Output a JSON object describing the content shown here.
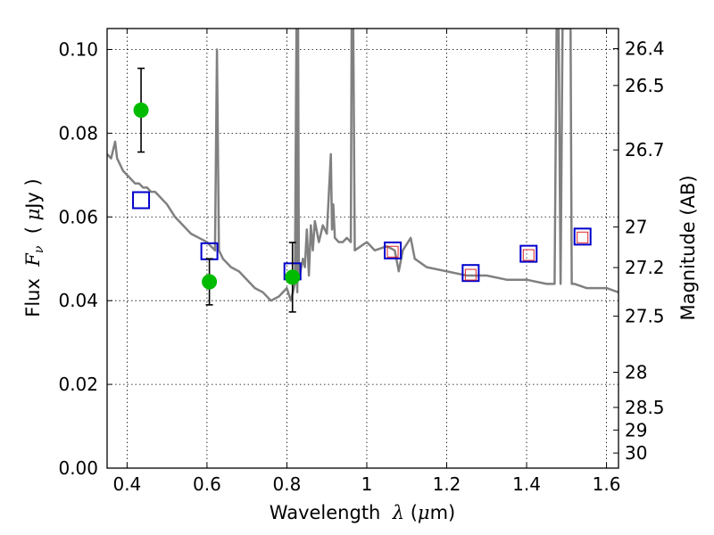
{
  "chart_data": {
    "type": "scatter",
    "title": "",
    "xlabel_parts": [
      "Wavelength  ",
      "λ",
      " (",
      "μ",
      "m)"
    ],
    "ylabel_parts": [
      "Flux  ",
      "F",
      "ν",
      "  ( ",
      "μ",
      "Jy )"
    ],
    "y2label": "Magnitude (AB)",
    "xlim": [
      0.35,
      1.63
    ],
    "ylim": [
      0.0,
      0.105
    ],
    "grid": true,
    "x_ticks": [
      {
        "value": 0.4,
        "label": "0.4"
      },
      {
        "value": 0.6,
        "label": "0.6"
      },
      {
        "value": 0.8,
        "label": "0.8"
      },
      {
        "value": 1.0,
        "label": "1"
      },
      {
        "value": 1.2,
        "label": "1.2"
      },
      {
        "value": 1.4,
        "label": "1.4"
      },
      {
        "value": 1.6,
        "label": "1.6"
      }
    ],
    "y_ticks": [
      {
        "value": 0.0,
        "label": "0.00"
      },
      {
        "value": 0.02,
        "label": "0.02"
      },
      {
        "value": 0.04,
        "label": "0.04"
      },
      {
        "value": 0.06,
        "label": "0.06"
      },
      {
        "value": 0.08,
        "label": "0.08"
      },
      {
        "value": 0.1,
        "label": "0.10"
      }
    ],
    "y2_ticks": [
      {
        "label": "26.4",
        "flux": 0.1002
      },
      {
        "label": "26.5",
        "flux": 0.0914
      },
      {
        "label": "26.7",
        "flux": 0.076
      },
      {
        "label": "27",
        "flux": 0.0576
      },
      {
        "label": "27.2",
        "flux": 0.0479
      },
      {
        "label": "27.5",
        "flux": 0.0363
      },
      {
        "label": "28",
        "flux": 0.0229
      },
      {
        "label": "28.5",
        "flux": 0.0145
      },
      {
        "label": "29",
        "flux": 0.0091
      },
      {
        "label": "30",
        "flux": 0.0036
      }
    ],
    "series": [
      {
        "kind": "model-spectrum",
        "color": "#808080",
        "x": [
          0.35,
          0.36,
          0.37,
          0.375,
          0.38,
          0.39,
          0.4,
          0.41,
          0.42,
          0.43,
          0.44,
          0.45,
          0.46,
          0.47,
          0.48,
          0.5,
          0.52,
          0.54,
          0.55,
          0.56,
          0.58,
          0.6,
          0.61,
          0.62,
          0.625,
          0.63,
          0.635,
          0.64,
          0.65,
          0.66,
          0.68,
          0.7,
          0.72,
          0.74,
          0.76,
          0.78,
          0.8,
          0.81,
          0.82,
          0.824,
          0.826,
          0.828,
          0.83,
          0.84,
          0.845,
          0.85,
          0.855,
          0.86,
          0.865,
          0.87,
          0.88,
          0.89,
          0.9,
          0.91,
          0.913,
          0.916,
          0.92,
          0.93,
          0.94,
          0.95,
          0.96,
          0.962,
          0.966,
          0.97,
          1.0,
          1.02,
          1.05,
          1.07,
          1.08,
          1.09,
          1.11,
          1.12,
          1.15,
          1.2,
          1.25,
          1.3,
          1.35,
          1.4,
          1.45,
          1.47,
          1.475,
          1.48,
          1.485,
          1.49,
          1.5,
          1.51,
          1.513,
          1.52,
          1.55,
          1.6,
          1.63
        ],
        "y": [
          0.075,
          0.074,
          0.078,
          0.074,
          0.073,
          0.071,
          0.07,
          0.069,
          0.068,
          0.068,
          0.067,
          0.067,
          0.066,
          0.066,
          0.065,
          0.063,
          0.06,
          0.058,
          0.057,
          0.056,
          0.055,
          0.054,
          0.053,
          0.052,
          0.1,
          0.052,
          0.051,
          0.05,
          0.049,
          0.048,
          0.047,
          0.045,
          0.043,
          0.042,
          0.04,
          0.041,
          0.043,
          0.04,
          0.044,
          0.105,
          0.042,
          0.105,
          0.045,
          0.05,
          0.048,
          0.057,
          0.046,
          0.058,
          0.052,
          0.059,
          0.054,
          0.058,
          0.056,
          0.075,
          0.057,
          0.063,
          0.055,
          0.054,
          0.054,
          0.055,
          0.054,
          0.105,
          0.105,
          0.052,
          0.054,
          0.052,
          0.053,
          0.052,
          0.047,
          0.052,
          0.055,
          0.05,
          0.048,
          0.047,
          0.046,
          0.046,
          0.045,
          0.045,
          0.044,
          0.044,
          0.105,
          0.105,
          0.044,
          0.105,
          0.105,
          0.105,
          0.044,
          0.044,
          0.043,
          0.043,
          0.042
        ]
      },
      {
        "kind": "observed-flux",
        "color": "#00bb00",
        "points": [
          {
            "x": 0.435,
            "y": 0.0855,
            "err": 0.01
          },
          {
            "x": 0.606,
            "y": 0.0445,
            "err": 0.0055
          },
          {
            "x": 0.814,
            "y": 0.0456,
            "err": 0.0083
          }
        ]
      },
      {
        "kind": "model-photometry",
        "color": "#0000cc",
        "x": [
          0.435,
          0.606,
          0.814,
          1.065,
          1.26,
          1.405,
          1.54
        ],
        "y": [
          0.064,
          0.0518,
          0.047,
          0.052,
          0.0466,
          0.0512,
          0.0553
        ]
      },
      {
        "kind": "model-photometry-inner",
        "color": "#dd2222",
        "x": [
          1.065,
          1.26,
          1.405,
          1.54
        ],
        "y": [
          0.0517,
          0.0462,
          0.0509,
          0.0551
        ]
      }
    ]
  }
}
